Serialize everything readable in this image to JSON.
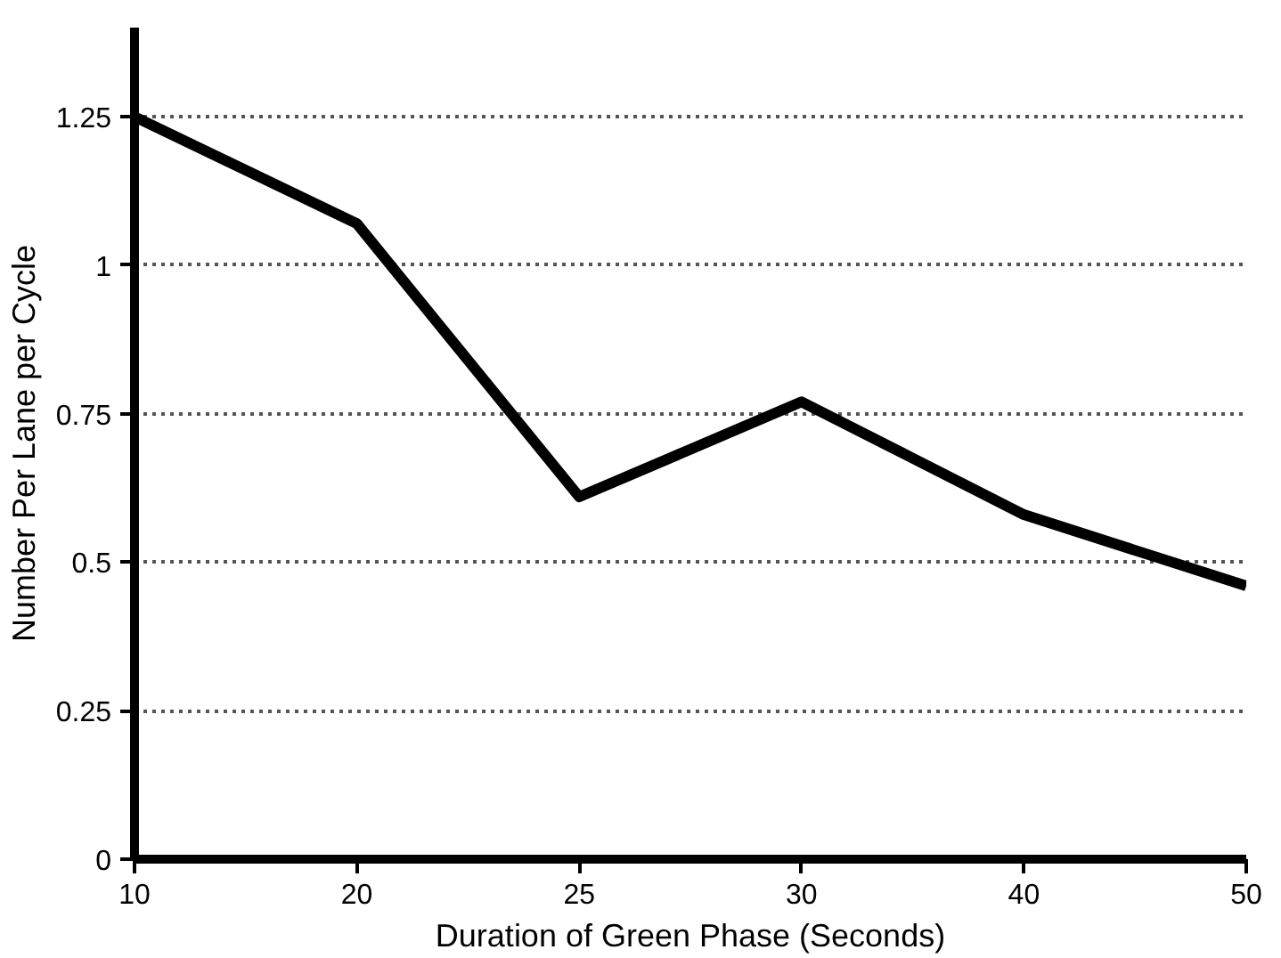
{
  "chart_data": {
    "type": "line",
    "xlabel": "Duration of Green Phase (Seconds)",
    "ylabel": "Number Per Lane per Cycle",
    "categories": [
      "10",
      "20",
      "25",
      "30",
      "40",
      "50"
    ],
    "series": [
      {
        "color": "#000000",
        "values": [
          1.25,
          1.07,
          0.61,
          0.77,
          0.58,
          0.46
        ]
      }
    ],
    "ylim": [
      0,
      1.4
    ],
    "yticks": [
      0,
      0.25,
      0.5,
      0.75,
      1,
      1.25
    ],
    "grid": "y",
    "marker": "none",
    "line_style": "solid"
  }
}
